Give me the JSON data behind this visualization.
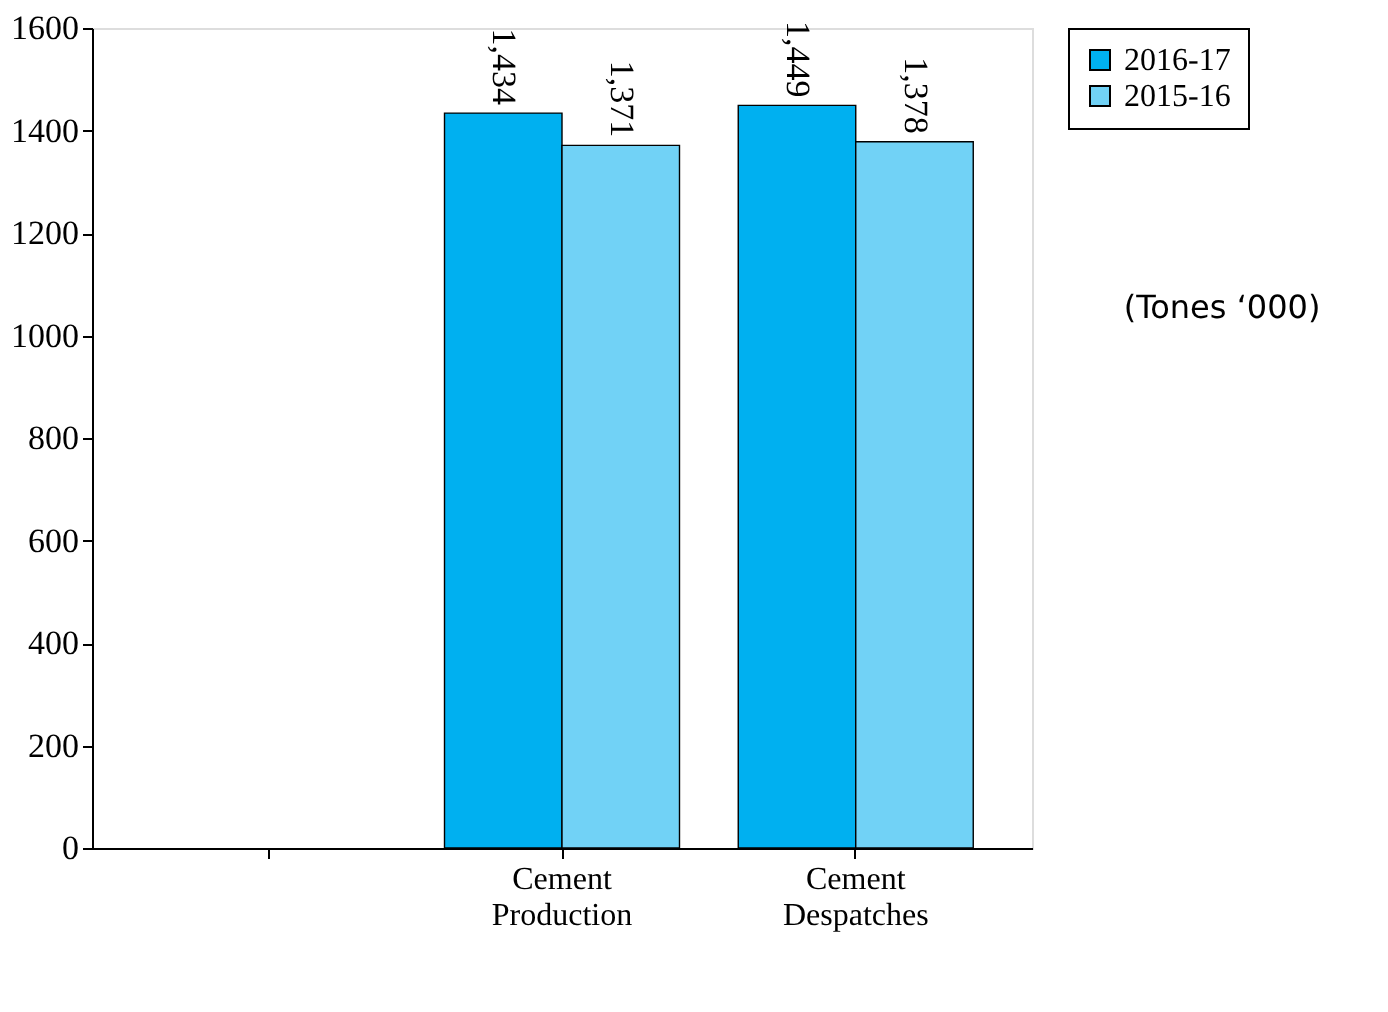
{
  "chart_data": {
    "type": "bar",
    "categories": [
      null,
      "Cement Production",
      "Cement Despatches"
    ],
    "series": [
      {
        "name": "2016-17",
        "color": "#00b0f0",
        "values": [
          null,
          1434,
          1449
        ],
        "value_labels": [
          null,
          "1,434",
          "1,449"
        ]
      },
      {
        "name": "2015-16",
        "color": "#71d2f6",
        "values": [
          null,
          1371,
          1378
        ],
        "value_labels": [
          null,
          "1,371",
          "1,378"
        ]
      }
    ],
    "ylim": [
      0,
      1600
    ],
    "yticks": [
      0,
      200,
      400,
      600,
      800,
      1000,
      1200,
      1400,
      1600
    ],
    "grid": false,
    "legend": "right",
    "annotations": [
      "(Tones ‘000)"
    ]
  }
}
